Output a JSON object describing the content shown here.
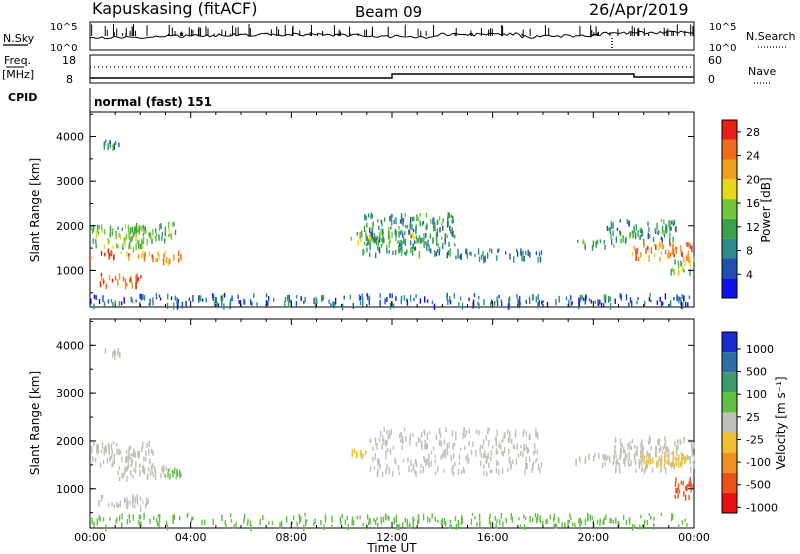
{
  "header": {
    "station": "Kapuskasing (fitACF)",
    "beam": "Beam 09",
    "date": "26/Apr/2019"
  },
  "status_panels": {
    "nsky_label": "N.Sky",
    "nsearch_label": "N.Search",
    "noise_ticks": [
      "10^5",
      "10^0"
    ],
    "freq_label": "Freq.",
    "freq_unit": "[MHz]",
    "freq_ticks": [
      "18",
      "8"
    ],
    "nave_label": "Nave",
    "nave_ticks": [
      "60",
      "0"
    ],
    "cpid_label": "CPID",
    "cpid_value": "normal (fast) 151"
  },
  "chart_data": [
    {
      "type": "heatmap",
      "panel": "power",
      "ylabel": "Slant Range [km]",
      "xlabel": "",
      "xlim": [
        0,
        24
      ],
      "ylim": [
        180,
        4550
      ],
      "yticks": [
        "1000",
        "2000",
        "3000",
        "4000"
      ],
      "colorbar": {
        "label": "Power [dB]",
        "ticks": [
          "4",
          "8",
          "12",
          "16",
          "20",
          "24",
          "28"
        ],
        "range": [
          0,
          30
        ],
        "colors": [
          "#1010e8",
          "#1f4faf",
          "#2c8a8a",
          "#3aa24a",
          "#6cc83a",
          "#e8d81a",
          "#f0a01a",
          "#ef6a1a",
          "#e82014"
        ]
      },
      "regions": [
        {
          "t": [
            0.0,
            1.0
          ],
          "r": [
            1300,
            1500
          ],
          "level": 28
        },
        {
          "t": [
            0.3,
            2.0
          ],
          "r": [
            700,
            950
          ],
          "level": 26
        },
        {
          "t": [
            1.0,
            3.6
          ],
          "r": [
            1250,
            1450
          ],
          "level": 22
        },
        {
          "t": [
            0.0,
            2.2
          ],
          "r": [
            1500,
            2050
          ],
          "level": 14
        },
        {
          "t": [
            1.6,
            3.4
          ],
          "r": [
            1700,
            2100
          ],
          "level": 12
        },
        {
          "t": [
            0.5,
            1.2
          ],
          "r": [
            3800,
            3950
          ],
          "level": 10
        },
        {
          "t": [
            0.0,
            24.0
          ],
          "r": [
            250,
            500
          ],
          "level": 6
        },
        {
          "t": [
            10.3,
            13.0
          ],
          "r": [
            1650,
            1900
          ],
          "level": 14
        },
        {
          "t": [
            10.8,
            14.5
          ],
          "r": [
            1400,
            2300
          ],
          "level": 10
        },
        {
          "t": [
            14.5,
            18.0
          ],
          "r": [
            1300,
            1500
          ],
          "level": 8
        },
        {
          "t": [
            19.2,
            20.8
          ],
          "r": [
            1550,
            1700
          ],
          "level": 12
        },
        {
          "t": [
            20.5,
            23.3
          ],
          "r": [
            1700,
            2150
          ],
          "level": 10
        },
        {
          "t": [
            21.5,
            24.0
          ],
          "r": [
            1300,
            1650
          ],
          "level": 24
        },
        {
          "t": [
            23.0,
            24.0
          ],
          "r": [
            1000,
            1300
          ],
          "level": 14
        }
      ]
    },
    {
      "type": "heatmap",
      "panel": "velocity",
      "ylabel": "Slant Range [km]",
      "xlabel": "Time UT",
      "xlim": [
        0,
        24
      ],
      "ylim": [
        180,
        4550
      ],
      "yticks": [
        "1000",
        "2000",
        "3000",
        "4000"
      ],
      "xticks": [
        "00:00",
        "04:00",
        "08:00",
        "12:00",
        "16:00",
        "20:00",
        "00:00"
      ],
      "colorbar": {
        "label": "Velocity [m s⁻¹]",
        "ticks": [
          "1000",
          "500",
          "100",
          "25",
          "-25",
          "-100",
          "-500",
          "-1000"
        ],
        "colors": [
          "#1a2ad0",
          "#2c6fa8",
          "#3c9a6c",
          "#60c040",
          "#c0c0b8",
          "#f0c030",
          "#f09020",
          "#ef5018",
          "#e81010"
        ]
      },
      "regions": [
        {
          "t": [
            0.0,
            2.5
          ],
          "r": [
            1500,
            2000
          ],
          "level": 25
        },
        {
          "t": [
            0.3,
            2.3
          ],
          "r": [
            650,
            900
          ],
          "level": 25
        },
        {
          "t": [
            1.0,
            3.6
          ],
          "r": [
            1250,
            1500
          ],
          "level": 25
        },
        {
          "t": [
            2.8,
            3.6
          ],
          "r": [
            1300,
            1450
          ],
          "level": 100
        },
        {
          "t": [
            0.5,
            1.2
          ],
          "r": [
            3800,
            3950
          ],
          "level": 25
        },
        {
          "t": [
            0.0,
            24.0
          ],
          "r": [
            250,
            500
          ],
          "level": 100
        },
        {
          "t": [
            10.3,
            11.0
          ],
          "r": [
            1700,
            1850
          ],
          "level": -100
        },
        {
          "t": [
            11.0,
            18.0
          ],
          "r": [
            1350,
            2300
          ],
          "level": 25
        },
        {
          "t": [
            19.0,
            21.0
          ],
          "r": [
            1550,
            1750
          ],
          "level": 25
        },
        {
          "t": [
            20.8,
            24.0
          ],
          "r": [
            1400,
            2100
          ],
          "level": 25
        },
        {
          "t": [
            21.8,
            23.8
          ],
          "r": [
            1500,
            1800
          ],
          "level": -100
        },
        {
          "t": [
            23.2,
            24.0
          ],
          "r": [
            850,
            1300
          ],
          "level": -500
        }
      ]
    }
  ]
}
